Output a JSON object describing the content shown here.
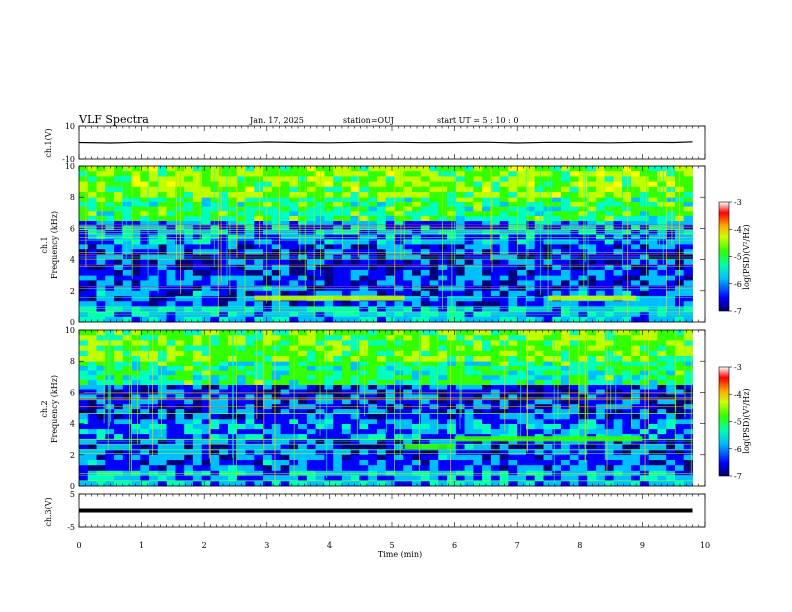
{
  "header": {
    "title": "VLF Spectra",
    "date": "Jan. 17, 2025",
    "station": "station=OUJ",
    "start_ut": "start  UT =  5 : 10 : 0"
  },
  "chart_data": [
    {
      "type": "line",
      "panel": "ch1-waveform",
      "ylabel": "ch.1(V)",
      "ylim": [
        -10,
        10
      ],
      "ytick_labels": [
        "10",
        "-10"
      ],
      "xlim": [
        0,
        10
      ],
      "x": [
        0,
        0.5,
        1,
        1.5,
        2,
        2.5,
        3,
        3.5,
        4,
        4.5,
        5,
        5.5,
        6,
        6.5,
        7,
        7.5,
        8,
        8.5,
        9,
        9.5,
        9.8
      ],
      "y": [
        0,
        -0.3,
        0.2,
        -0.1,
        0.1,
        -0.2,
        0.3,
        0,
        -0.2,
        0.1,
        0.2,
        -0.1,
        0,
        0.2,
        -0.3,
        0.1,
        0,
        -0.2,
        0.1,
        0,
        0.4
      ],
      "color": "#000000"
    },
    {
      "type": "heatmap",
      "panel": "ch1-spectrogram",
      "ylabel": "ch.1\nFrequency (kHz)",
      "ylabel_lines": [
        "ch.1",
        "Frequency (kHz)"
      ],
      "ylim": [
        0,
        10
      ],
      "ytick_labels": [
        "0",
        "2",
        "4",
        "6",
        "8",
        "10"
      ],
      "xlim": [
        0,
        9.8
      ],
      "colorbar": {
        "label": "log(PSD)(V²/Hz)",
        "range": [
          -7,
          -3
        ],
        "tick_labels": [
          "-3",
          "-4",
          "-5",
          "-6",
          "-7"
        ]
      },
      "colormap": [
        "#00007a",
        "#0000ff",
        "#00bfff",
        "#00ffbf",
        "#32ff00",
        "#bfff00",
        "#ffff00",
        "#ff8000",
        "#ff0000"
      ],
      "bands": [
        {
          "f_min": 0,
          "f_max": 1,
          "level": -5.8
        },
        {
          "f_min": 1,
          "f_max": 3,
          "level": -6.2
        },
        {
          "f_min": 3,
          "f_max": 5,
          "level": -6.3
        },
        {
          "f_min": 5,
          "f_max": 6.5,
          "level": -6.0
        },
        {
          "f_min": 6.5,
          "f_max": 8,
          "level": -5.2
        },
        {
          "f_min": 8,
          "f_max": 10,
          "level": -4.8
        }
      ],
      "features": [
        {
          "t_start": 2.8,
          "t_end": 5.2,
          "f": 1.5,
          "level": -4.6
        },
        {
          "t_start": 7.5,
          "t_end": 8.9,
          "f": 1.5,
          "level": -4.4
        }
      ]
    },
    {
      "type": "heatmap",
      "panel": "ch2-spectrogram",
      "ylabel": "ch.2\nFrequency (kHz)",
      "ylabel_lines": [
        "ch.2",
        "Frequency (kHz)"
      ],
      "ylim": [
        0,
        10
      ],
      "ytick_labels": [
        "0",
        "2",
        "4",
        "6",
        "8",
        "10"
      ],
      "xlim": [
        0,
        9.8
      ],
      "colorbar": {
        "label": "log(PSD)(V²/Hz)",
        "range": [
          -7,
          -3
        ],
        "tick_labels": [
          "-3",
          "-4",
          "-5",
          "-6",
          "-7"
        ]
      },
      "bands": [
        {
          "f_min": 0,
          "f_max": 1,
          "level": -5.9
        },
        {
          "f_min": 1,
          "f_max": 3,
          "level": -6.2
        },
        {
          "f_min": 3,
          "f_max": 4.3,
          "level": -6.0
        },
        {
          "f_min": 4.3,
          "f_max": 6.5,
          "level": -6.3
        },
        {
          "f_min": 6.5,
          "f_max": 8,
          "level": -5.3
        },
        {
          "f_min": 8,
          "f_max": 10,
          "level": -4.9
        }
      ],
      "features": [
        {
          "t_start": 5.2,
          "t_end": 6.0,
          "f": 2.5,
          "level": -5.0
        },
        {
          "t_start": 6.0,
          "t_end": 9.0,
          "f": 3.0,
          "level": -5.1
        }
      ]
    },
    {
      "type": "line",
      "panel": "ch3-waveform",
      "ylabel": "ch.3(V)",
      "ylim": [
        -5,
        5
      ],
      "ytick_labels": [
        "5",
        "-5"
      ],
      "xlim": [
        0,
        10
      ],
      "x": [
        0,
        9.8
      ],
      "y": [
        0,
        0
      ],
      "color": "#000000"
    }
  ],
  "x_axis": {
    "label": "Time  (min)",
    "tick_labels": [
      "0",
      "1",
      "2",
      "3",
      "4",
      "5",
      "6",
      "7",
      "8",
      "9",
      "10"
    ]
  }
}
